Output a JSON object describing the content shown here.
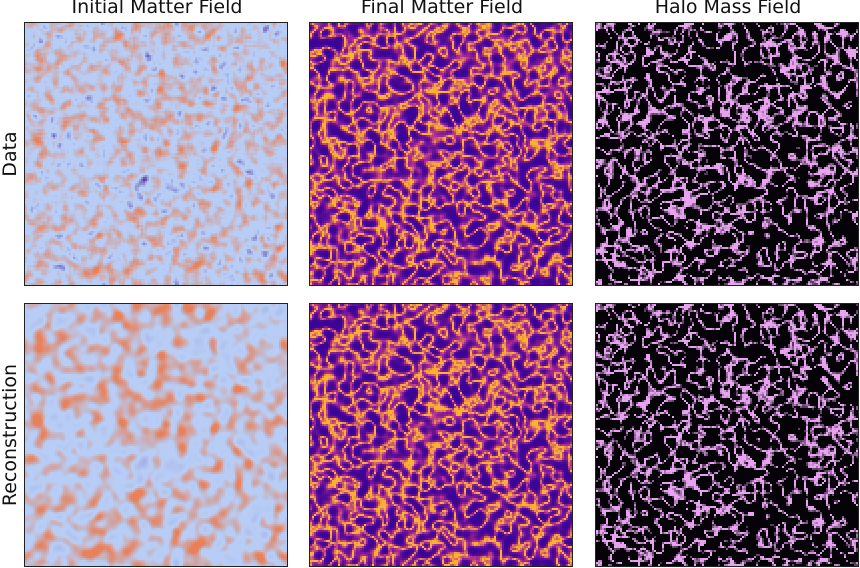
{
  "columns": [
    {
      "title": "Initial Matter Field",
      "palette": "coolwarm"
    },
    {
      "title": "Final Matter Field",
      "palette": "plasma"
    },
    {
      "title": "Halo Mass Field",
      "palette": "magma"
    }
  ],
  "rows": [
    {
      "label": "Data",
      "variant": "data"
    },
    {
      "label": "Reconstruction",
      "variant": "reconstruction"
    }
  ],
  "colors": {
    "coolwarm_low": "#3b0f8c",
    "coolwarm_mid": "#b7cdf5",
    "coolwarm_high": "#e8805a",
    "plasma_low": "#3a0496",
    "plasma_high": "#fdb22f",
    "magma_bg": "#050308",
    "magma_high": "#e7a2f0"
  }
}
